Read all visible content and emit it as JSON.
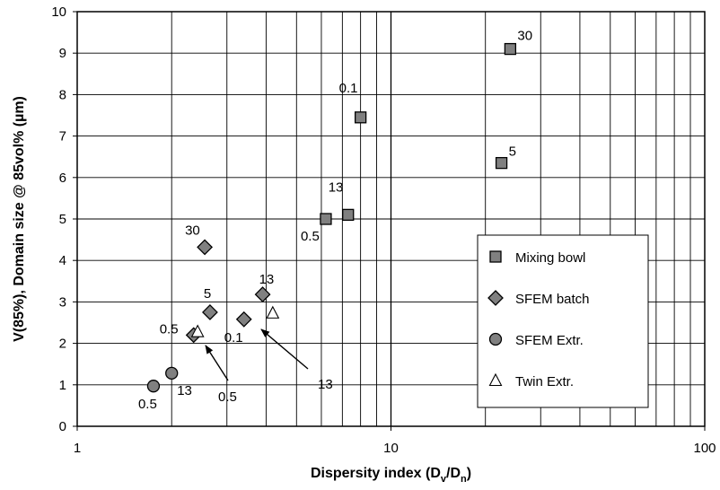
{
  "chart_data": {
    "type": "scatter",
    "title": "",
    "xlabel": "Dispersity index (D",
    "xlabel_sub1": "v",
    "xlabel_mid": "/D",
    "xlabel_sub2": "n",
    "xlabel_end": ")",
    "ylabel": "V(85%), Domain size @ 85vol% (µm)",
    "x_scale": "log",
    "xlim": [
      1,
      100
    ],
    "ylim": [
      0,
      10
    ],
    "x_ticks": [
      "1",
      "10",
      "100"
    ],
    "y_ticks": [
      "0",
      "1",
      "2",
      "3",
      "4",
      "5",
      "6",
      "7",
      "8",
      "9",
      "10"
    ],
    "grid": true,
    "legend_position": "lower-right",
    "series": [
      {
        "name": "Mixing bowl",
        "marker": "square",
        "color": "#808080",
        "points": [
          {
            "x": 24.0,
            "y": 9.1,
            "label": "30"
          },
          {
            "x": 22.5,
            "y": 6.35,
            "label": "5"
          },
          {
            "x": 8.0,
            "y": 7.45,
            "label": "0.1"
          },
          {
            "x": 7.3,
            "y": 5.1,
            "label": "13"
          },
          {
            "x": 6.2,
            "y": 5.0,
            "label": "0.5"
          }
        ]
      },
      {
        "name": "SFEM batch",
        "marker": "diamond",
        "color": "#808080",
        "points": [
          {
            "x": 2.55,
            "y": 4.32,
            "label": "30"
          },
          {
            "x": 2.65,
            "y": 2.75,
            "label": "5"
          },
          {
            "x": 3.9,
            "y": 3.18,
            "label": "13"
          },
          {
            "x": 3.4,
            "y": 2.58,
            "label": "0.1"
          },
          {
            "x": 2.35,
            "y": 2.2,
            "label": "0.5"
          }
        ]
      },
      {
        "name": "SFEM Extr.",
        "marker": "circle",
        "color": "#808080",
        "points": [
          {
            "x": 1.75,
            "y": 0.97,
            "label": "0.5"
          },
          {
            "x": 2.0,
            "y": 1.28,
            "label": "13"
          }
        ]
      },
      {
        "name": "Twin Extr.",
        "marker": "triangle",
        "color": "#ffffff",
        "points": [
          {
            "x": 2.42,
            "y": 2.28,
            "label": "0.5"
          },
          {
            "x": 4.2,
            "y": 2.73,
            "label": "13"
          }
        ]
      }
    ]
  }
}
